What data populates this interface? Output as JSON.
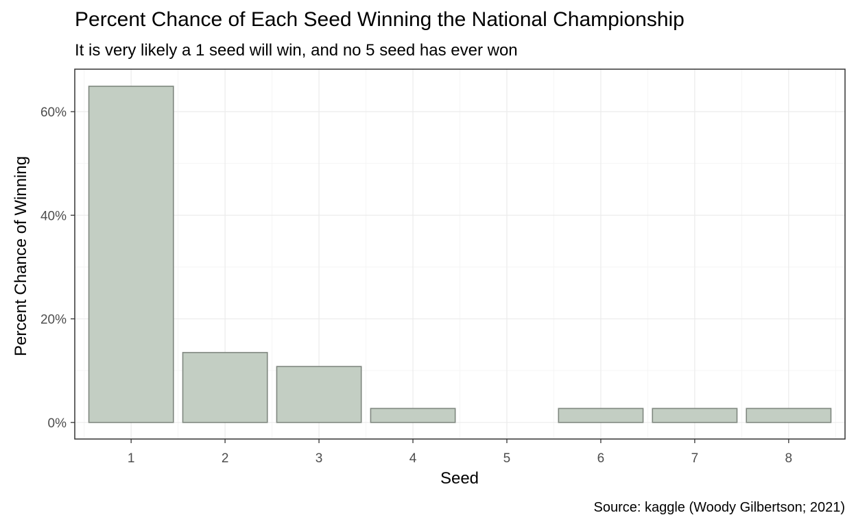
{
  "chart_data": {
    "type": "bar",
    "title": "Percent Chance of Each Seed Winning the National Championship",
    "subtitle": "It is very likely a 1 seed will win, and no 5 seed has ever won",
    "caption": "Source: kaggle (Woody Gilbertson; 2021)",
    "xlabel": "Seed",
    "ylabel": "Percent Chance of Winning",
    "categories": [
      "1",
      "2",
      "3",
      "4",
      "5",
      "6",
      "7",
      "8"
    ],
    "values": [
      64.9,
      13.5,
      10.8,
      2.7,
      0,
      2.7,
      2.7,
      2.7
    ],
    "ylim": [
      -3.2,
      68.2
    ],
    "yticks": [
      0,
      20,
      40,
      60
    ],
    "ytick_labels": [
      "0%",
      "20%",
      "40%",
      "60%"
    ],
    "grid": true,
    "legend": "none",
    "colors": {
      "bar_fill": "#c3cec3",
      "bar_stroke": "#7f877f",
      "grid_major": "#ebebeb",
      "grid_minor": "#f5f5f5",
      "panel_border": "#333333",
      "tick_text": "#4d4d4d"
    }
  }
}
